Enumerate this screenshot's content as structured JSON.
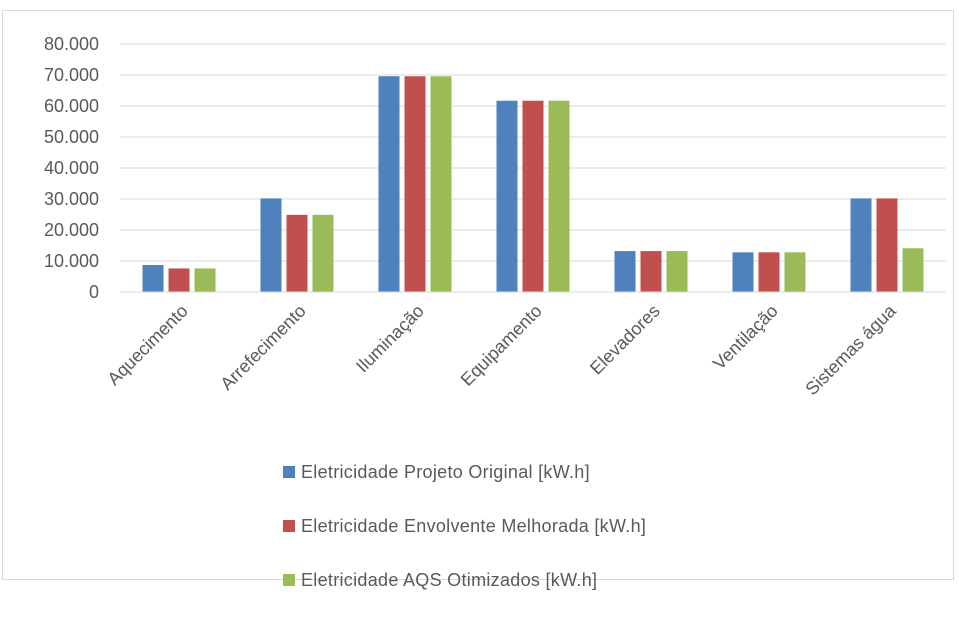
{
  "chart_data": {
    "type": "bar",
    "categories": [
      "Aquecimento",
      "Arrefecimento",
      "Iluminação",
      "Equipamento",
      "Elevadores",
      "Ventilação",
      "Sistemas água"
    ],
    "series": [
      {
        "name": "Eletricidade Projeto Original [kW.h]",
        "color": "#4f81bd",
        "values": [
          8700,
          30200,
          69600,
          61700,
          13200,
          12800,
          30200
        ]
      },
      {
        "name": "Eletricidade Envolvente Melhorada [kW.h]",
        "color": "#c0504d",
        "values": [
          7600,
          24900,
          69600,
          61700,
          13200,
          12800,
          30200
        ]
      },
      {
        "name": "Eletricidade AQS Otimizados [kW.h]",
        "color": "#9bbb59",
        "values": [
          7600,
          24900,
          69600,
          61700,
          13200,
          12800,
          14100
        ]
      }
    ],
    "ylim": [
      0,
      80000
    ],
    "yticks": [
      "0",
      "10.000",
      "20.000",
      "30.000",
      "40.000",
      "50.000",
      "60.000",
      "70.000",
      "80.000"
    ],
    "grid": true,
    "legend_position": "bottom",
    "title": "",
    "xlabel": "",
    "ylabel": ""
  }
}
